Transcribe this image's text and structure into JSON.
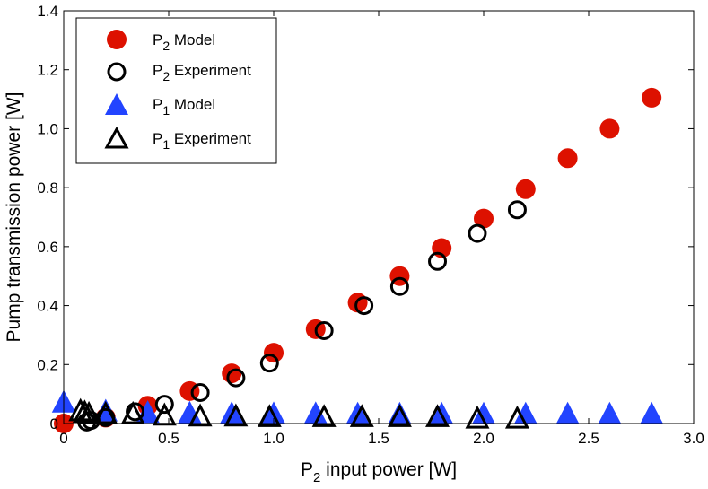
{
  "chart_data": {
    "type": "scatter",
    "xlabel": {
      "base": "P",
      "sub": "2",
      "rest": " input power [W]"
    },
    "ylabel": "Pump transmission power [W]",
    "xlim": [
      0,
      3.0
    ],
    "ylim": [
      0,
      1.4
    ],
    "x_ticks": [
      0,
      0.5,
      1.0,
      1.5,
      2.0,
      2.5,
      3.0
    ],
    "x_tick_labels": [
      "0",
      "0.5",
      "1.0",
      "1.5",
      "2.0",
      "2.5",
      "3.0"
    ],
    "y_ticks": [
      0,
      0.2,
      0.4,
      0.6,
      0.8,
      1.0,
      1.2,
      1.4
    ],
    "y_tick_labels": [
      "0",
      "0.2",
      "0.4",
      "0.6",
      "0.8",
      "1.0",
      "1.2",
      "1.4"
    ],
    "legend_position": "top-left",
    "series": [
      {
        "name": "P2 Model",
        "label_base": "P",
        "label_sub": "2",
        "label_rest": " Model",
        "marker": "circle-filled",
        "color": "#dd1100",
        "x": [
          0,
          0.2,
          0.4,
          0.6,
          0.8,
          1.0,
          1.2,
          1.4,
          1.6,
          1.8,
          2.0,
          2.2,
          2.4,
          2.6,
          2.8
        ],
        "y": [
          0.0,
          0.02,
          0.06,
          0.11,
          0.17,
          0.24,
          0.32,
          0.41,
          0.5,
          0.595,
          0.695,
          0.795,
          0.9,
          1.0,
          1.105
        ]
      },
      {
        "name": "P2 Experiment",
        "label_base": "P",
        "label_sub": "2",
        "label_rest": " Experiment",
        "marker": "circle-open",
        "color": "#000000",
        "x": [
          0.11,
          0.13,
          0.2,
          0.34,
          0.48,
          0.65,
          0.82,
          0.98,
          1.24,
          1.43,
          1.6,
          1.78,
          1.97,
          2.16
        ],
        "y": [
          0.005,
          0.01,
          0.02,
          0.04,
          0.065,
          0.105,
          0.155,
          0.205,
          0.315,
          0.4,
          0.465,
          0.55,
          0.645,
          0.725
        ]
      },
      {
        "name": "P1 Model",
        "label_base": "P",
        "label_sub": "1",
        "label_rest": " Model",
        "marker": "triangle-filled",
        "color": "#2244ff",
        "x": [
          0,
          0.2,
          0.4,
          0.6,
          0.8,
          1.0,
          1.2,
          1.4,
          1.6,
          1.8,
          2.0,
          2.2,
          2.4,
          2.6,
          2.8
        ],
        "y": [
          0.07,
          0.04,
          0.035,
          0.033,
          0.032,
          0.031,
          0.031,
          0.03,
          0.03,
          0.03,
          0.03,
          0.03,
          0.03,
          0.03,
          0.03
        ]
      },
      {
        "name": "P1 Experiment",
        "label_base": "P",
        "label_sub": "1",
        "label_rest": " Experiment",
        "marker": "triangle-open",
        "color": "#000000",
        "x": [
          0.08,
          0.1,
          0.12,
          0.2,
          0.33,
          0.48,
          0.65,
          0.82,
          0.98,
          1.24,
          1.42,
          1.6,
          1.78,
          1.97,
          2.16
        ],
        "y": [
          0.04,
          0.035,
          0.03,
          0.03,
          0.03,
          0.025,
          0.022,
          0.022,
          0.02,
          0.02,
          0.02,
          0.02,
          0.02,
          0.015,
          0.015
        ]
      }
    ]
  }
}
